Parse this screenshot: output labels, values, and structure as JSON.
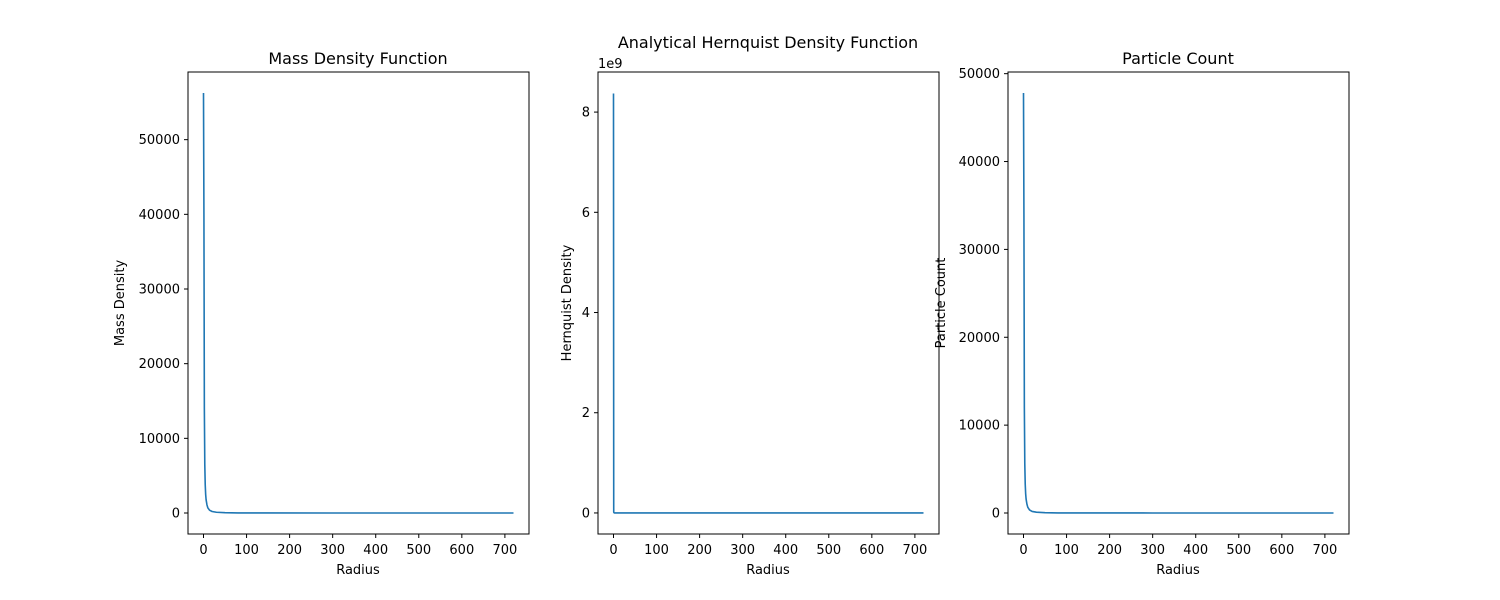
{
  "chart_data": [
    {
      "type": "line",
      "title": "Mass Density Function",
      "xlabel": "Radius",
      "ylabel": "Mass Density",
      "offset_text": "",
      "xlim": [
        -36,
        756
      ],
      "ylim": [
        -2812,
        59062
      ],
      "xticks": [
        0,
        100,
        200,
        300,
        400,
        500,
        600,
        700
      ],
      "yticks": [
        0,
        10000,
        20000,
        30000,
        40000,
        50000
      ],
      "tick_labels_x": [
        "0",
        "100",
        "200",
        "300",
        "400",
        "500",
        "600",
        "700"
      ],
      "tick_labels_y": [
        "0",
        "10000",
        "20000",
        "30000",
        "40000",
        "50000"
      ],
      "grid": false,
      "line_color": "#1f77b4",
      "series": [
        {
          "x": [
            0,
            1,
            2,
            3,
            4,
            5,
            6,
            8,
            10,
            14,
            20,
            30,
            50,
            80,
            150,
            300,
            500,
            720
          ],
          "y": [
            56250,
            40000,
            14000,
            6500,
            3800,
            2500,
            1800,
            1100,
            700,
            380,
            200,
            100,
            40,
            15,
            5,
            1,
            0,
            0
          ]
        }
      ]
    },
    {
      "type": "line",
      "title": "Analytical Hernquist Density Function",
      "xlabel": "Radius",
      "ylabel": "Hernquist Density",
      "offset_text": "1e9",
      "xlim": [
        -36,
        756
      ],
      "ylim": [
        -0.42,
        8.8
      ],
      "xticks": [
        0,
        100,
        200,
        300,
        400,
        500,
        600,
        700
      ],
      "yticks": [
        0,
        2,
        4,
        6,
        8
      ],
      "tick_labels_x": [
        "0",
        "100",
        "200",
        "300",
        "400",
        "500",
        "600",
        "700"
      ],
      "tick_labels_y": [
        "0",
        "2",
        "4",
        "6",
        "8"
      ],
      "grid": false,
      "line_color": "#1f77b4",
      "series": [
        {
          "x": [
            0,
            0.5,
            1,
            2,
            5,
            20,
            100,
            720
          ],
          "y": [
            8.37,
            0.02,
            0.005,
            0.001,
            0,
            0,
            0,
            0
          ]
        }
      ]
    },
    {
      "type": "line",
      "title": "Particle Count",
      "xlabel": "Radius",
      "ylabel": "Particle Count",
      "offset_text": "",
      "xlim": [
        -36,
        756
      ],
      "ylim": [
        -2390,
        50190
      ],
      "xticks": [
        0,
        100,
        200,
        300,
        400,
        500,
        600,
        700
      ],
      "yticks": [
        0,
        10000,
        20000,
        30000,
        40000,
        50000
      ],
      "tick_labels_x": [
        "0",
        "100",
        "200",
        "300",
        "400",
        "500",
        "600",
        "700"
      ],
      "tick_labels_y": [
        "0",
        "10000",
        "20000",
        "30000",
        "40000",
        "50000"
      ],
      "grid": false,
      "line_color": "#1f77b4",
      "series": [
        {
          "x": [
            0,
            1,
            2,
            3,
            4,
            5,
            6,
            8,
            10,
            14,
            20,
            30,
            50,
            80,
            150,
            300,
            500,
            720
          ],
          "y": [
            47800,
            34000,
            12000,
            5600,
            3300,
            2200,
            1600,
            1000,
            650,
            350,
            180,
            90,
            35,
            12,
            4,
            1,
            0,
            0
          ]
        }
      ]
    }
  ]
}
